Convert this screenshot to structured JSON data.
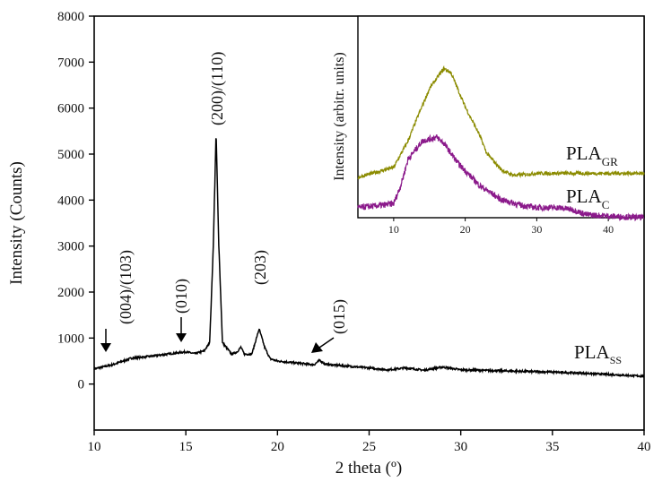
{
  "chart_data": [
    {
      "type": "line",
      "xlabel": "2 theta (º)",
      "ylabel": "Intensity (Counts)",
      "xlim": [
        10,
        40
      ],
      "ylim": [
        -1000,
        8000
      ],
      "xticks": [
        10,
        15,
        20,
        25,
        30,
        35,
        40
      ],
      "yticks": [
        0,
        1000,
        2000,
        3000,
        4000,
        5000,
        6000,
        7000,
        8000
      ],
      "series": [
        {
          "name": "PLA",
          "subscript": "SS",
          "color": "#000000",
          "x": [
            10,
            11,
            12,
            13,
            14,
            15,
            15.5,
            16,
            16.3,
            16.5,
            16.65,
            16.8,
            17,
            17.5,
            17.8,
            18,
            18.2,
            18.6,
            19,
            19.3,
            19.6,
            20,
            22,
            22.3,
            22.6,
            25,
            26,
            27,
            28,
            29,
            30,
            31,
            33,
            35,
            37,
            40
          ],
          "y": [
            330,
            420,
            560,
            600,
            650,
            700,
            660,
            720,
            900,
            3000,
            5500,
            3000,
            900,
            650,
            700,
            800,
            650,
            650,
            1200,
            800,
            550,
            500,
            420,
            520,
            430,
            350,
            310,
            350,
            300,
            370,
            310,
            300,
            280,
            260,
            230,
            170
          ]
        }
      ],
      "annotations": [
        {
          "text": "(004)/(103)",
          "x": 12,
          "arrow": "down"
        },
        {
          "text": "(010)",
          "x": 14.8,
          "arrow": "down"
        },
        {
          "text": "(200)/(110)",
          "x": 16.65
        },
        {
          "text": "(203)",
          "x": 19
        },
        {
          "text": "(015)",
          "x": 22.3,
          "arrow": "diagonal"
        }
      ]
    },
    {
      "type": "line",
      "ylabel": "Intensity (arbitr. units)",
      "xlim": [
        5,
        45
      ],
      "ylim": [
        0,
        1
      ],
      "xticks": [
        10,
        20,
        30,
        40
      ],
      "series": [
        {
          "name": "PLA",
          "subscript": "GR",
          "color": "#8b8b00",
          "x": [
            5,
            8,
            10,
            12,
            13,
            15,
            17,
            18,
            20,
            22,
            23,
            25,
            26,
            27,
            30,
            35,
            40,
            45
          ],
          "y": [
            0.2,
            0.23,
            0.25,
            0.38,
            0.47,
            0.64,
            0.74,
            0.72,
            0.55,
            0.41,
            0.32,
            0.24,
            0.22,
            0.21,
            0.22,
            0.22,
            0.22,
            0.22
          ]
        },
        {
          "name": "PLA",
          "subscript": "C",
          "color": "#8b1a8b",
          "x": [
            5,
            8,
            10,
            11,
            12,
            14,
            16,
            17,
            19,
            22,
            25,
            28,
            30,
            33,
            35,
            37,
            40,
            45
          ],
          "y": [
            0.05,
            0.06,
            0.07,
            0.16,
            0.29,
            0.38,
            0.4,
            0.37,
            0.27,
            0.16,
            0.09,
            0.06,
            0.05,
            0.05,
            0.04,
            0.015,
            0.008,
            0.0
          ]
        }
      ]
    }
  ]
}
